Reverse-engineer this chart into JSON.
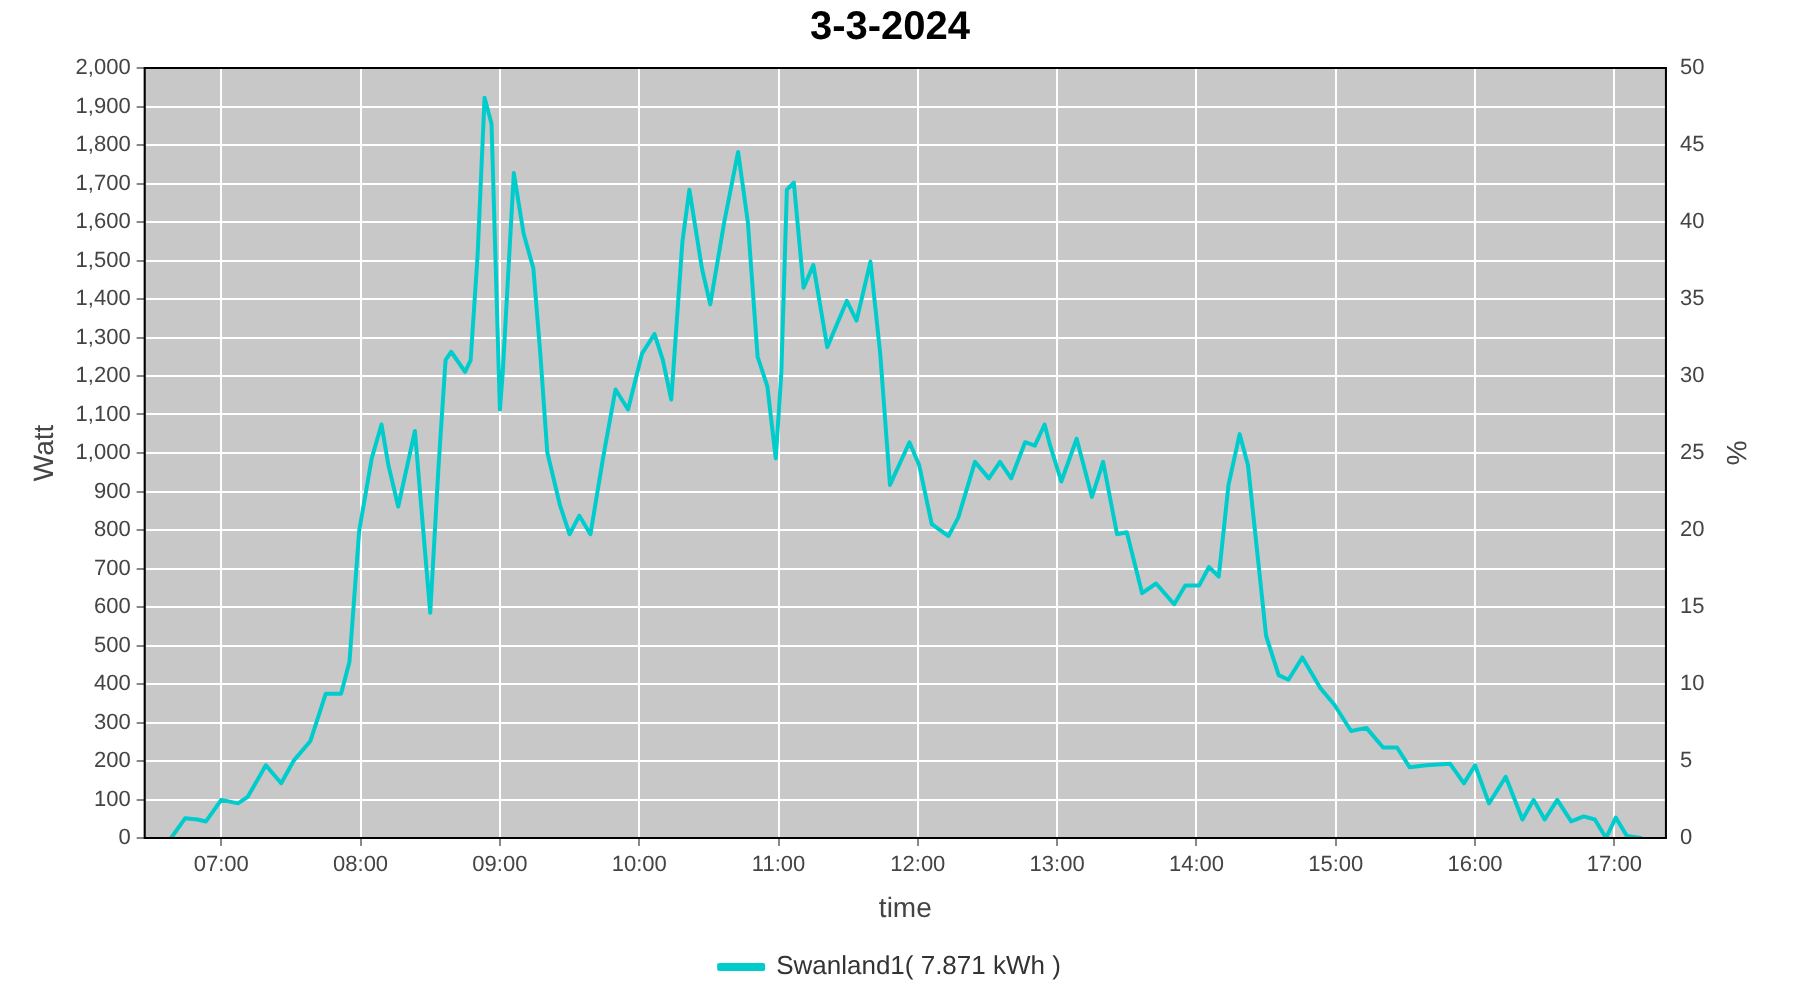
{
  "chart_data": {
    "type": "line",
    "title": "3-3-2024",
    "xlabel": "time",
    "ylabel": "Watt",
    "y2label": "%",
    "xlim": [
      6.45,
      17.37
    ],
    "xticks": [
      {
        "value": 7,
        "label": "07:00"
      },
      {
        "value": 8,
        "label": "08:00"
      },
      {
        "value": 9,
        "label": "09:00"
      },
      {
        "value": 10,
        "label": "10:00"
      },
      {
        "value": 11,
        "label": "11:00"
      },
      {
        "value": 12,
        "label": "12:00"
      },
      {
        "value": 13,
        "label": "13:00"
      },
      {
        "value": 14,
        "label": "14:00"
      },
      {
        "value": 15,
        "label": "15:00"
      },
      {
        "value": 16,
        "label": "16:00"
      },
      {
        "value": 17,
        "label": "17:00"
      }
    ],
    "ylim": [
      0,
      2000
    ],
    "yticks": [
      0,
      100,
      200,
      300,
      400,
      500,
      600,
      700,
      800,
      900,
      {
        "value": 1000,
        "label": "1,000"
      },
      {
        "value": 1100,
        "label": "1,100"
      },
      {
        "value": 1200,
        "label": "1,200"
      },
      {
        "value": 1300,
        "label": "1,300"
      },
      {
        "value": 1400,
        "label": "1,400"
      },
      {
        "value": 1500,
        "label": "1,500"
      },
      {
        "value": 1600,
        "label": "1,600"
      },
      {
        "value": 1700,
        "label": "1,700"
      },
      {
        "value": 1800,
        "label": "1,800"
      },
      {
        "value": 1900,
        "label": "1,900"
      },
      {
        "value": 2000,
        "label": "2,000"
      }
    ],
    "y2lim": [
      0,
      50
    ],
    "y2ticks": [
      0,
      5,
      10,
      15,
      20,
      25,
      30,
      35,
      40,
      45,
      50
    ],
    "grid": true,
    "legend": "bottom",
    "marker": "none",
    "line_style": "solid",
    "series": [
      {
        "name": "Swanland1( 7.871 kWh )",
        "color": "#00cccc",
        "x": [
          6.64,
          6.74,
          6.83,
          6.89,
          7.0,
          7.12,
          7.19,
          7.32,
          7.43,
          7.52,
          7.64,
          7.75,
          7.86,
          7.92,
          7.99,
          8.08,
          8.15,
          8.2,
          8.27,
          8.39,
          8.45,
          8.5,
          8.56,
          8.61,
          8.65,
          8.75,
          8.79,
          8.84,
          8.89,
          8.94,
          9.0,
          9.02,
          9.1,
          9.17,
          9.24,
          9.29,
          9.34,
          9.43,
          9.5,
          9.57,
          9.65,
          9.74,
          9.83,
          9.92,
          10.02,
          10.11,
          10.17,
          10.23,
          10.31,
          10.36,
          10.45,
          10.51,
          10.61,
          10.71,
          10.78,
          10.85,
          10.92,
          10.98,
          11.02,
          11.06,
          11.11,
          11.18,
          11.25,
          11.35,
          11.49,
          11.56,
          11.66,
          11.73,
          11.8,
          11.88,
          11.94,
          12.01,
          12.1,
          12.22,
          12.29,
          12.41,
          12.51,
          12.59,
          12.67,
          12.77,
          12.84,
          12.91,
          12.95,
          13.03,
          13.14,
          13.25,
          13.33,
          13.43,
          13.5,
          13.61,
          13.71,
          13.84,
          13.92,
          14.02,
          14.09,
          14.16,
          14.23,
          14.31,
          14.37,
          14.44,
          14.5,
          14.59,
          14.66,
          14.76,
          14.89,
          14.99,
          15.11,
          15.22,
          15.34,
          15.44,
          15.53,
          15.65,
          15.82,
          15.92,
          16.0,
          16.1,
          16.22,
          16.34,
          16.42,
          16.5,
          16.59,
          16.69,
          16.78,
          16.86,
          16.94,
          17.01,
          17.09,
          17.19
        ],
        "values": [
          0,
          51,
          48,
          43,
          99,
          90,
          107,
          189,
          142,
          201,
          252,
          375,
          375,
          457,
          798,
          986,
          1074,
          968,
          861,
          1057,
          798,
          585,
          968,
          1241,
          1263,
          1211,
          1241,
          1514,
          1923,
          1855,
          1113,
          1207,
          1727,
          1570,
          1480,
          1258,
          1002,
          866,
          789,
          837,
          789,
          986,
          1165,
          1113,
          1258,
          1309,
          1241,
          1139,
          1548,
          1684,
          1480,
          1386,
          1599,
          1782,
          1599,
          1250,
          1173,
          986,
          1207,
          1684,
          1702,
          1429,
          1488,
          1275,
          1395,
          1344,
          1497,
          1258,
          917,
          980,
          1028,
          968,
          815,
          784,
          832,
          977,
          934,
          977,
          934,
          1028,
          1019,
          1074,
          1019,
          926,
          1037,
          886,
          977,
          789,
          794,
          636,
          661,
          607,
          656,
          656,
          704,
          679,
          917,
          1049,
          968,
          730,
          525,
          423,
          411,
          469,
          389,
          346,
          278,
          286,
          235,
          235,
          184,
          189,
          193,
          142,
          189,
          90,
          159,
          48,
          99,
          48,
          99,
          43,
          56,
          48,
          0,
          53,
          5,
          0
        ]
      }
    ]
  }
}
